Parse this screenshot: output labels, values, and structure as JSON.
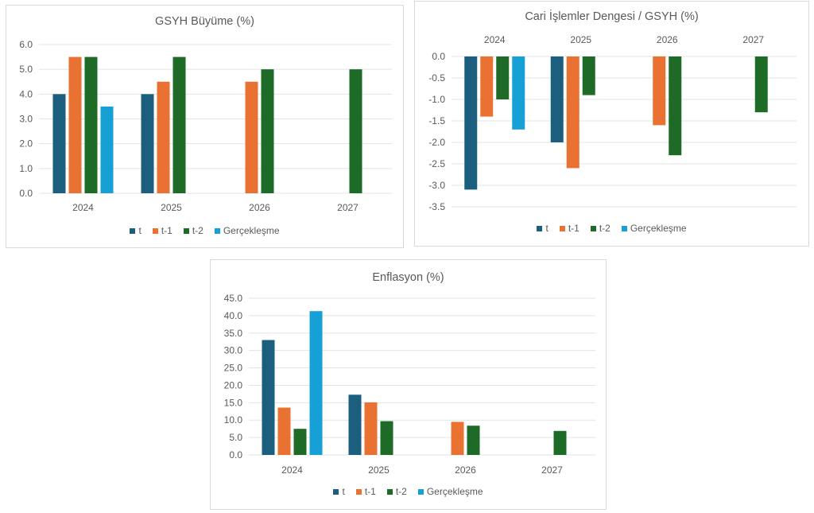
{
  "legend_colors": {
    "t": "#1b5e7e",
    "t-1": "#e97132",
    "t-2": "#1e6b27",
    "Gerçekleşme": "#17a0d5"
  },
  "chart_data": [
    {
      "id": "gsyh",
      "type": "bar",
      "title": "GSYH Büyüme (%)",
      "xlabel": "",
      "ylabel": "",
      "categories": [
        "2024",
        "2025",
        "2026",
        "2027"
      ],
      "ylim": [
        0,
        6
      ],
      "yticks": [
        0,
        1,
        2,
        3,
        4,
        5,
        6
      ],
      "ytick_labels": [
        "0.0",
        "1.0",
        "2.0",
        "3.0",
        "4.0",
        "5.0",
        "6.0"
      ],
      "category_axis_position": "bottom",
      "grid": true,
      "legend_position": "bottom",
      "series": [
        {
          "name": "t",
          "values": [
            4.0,
            4.0,
            null,
            null
          ]
        },
        {
          "name": "t-1",
          "values": [
            5.5,
            4.5,
            4.5,
            null
          ]
        },
        {
          "name": "t-2",
          "values": [
            5.5,
            5.5,
            5.0,
            5.0
          ]
        },
        {
          "name": "Gerçekleşme",
          "values": [
            3.5,
            null,
            null,
            null
          ]
        }
      ]
    },
    {
      "id": "cari",
      "type": "bar",
      "title": "Cari İşlemler Dengesi / GSYH (%)",
      "xlabel": "",
      "ylabel": "",
      "categories": [
        "2024",
        "2025",
        "2026",
        "2027"
      ],
      "ylim": [
        -3.5,
        0
      ],
      "yticks": [
        0,
        -0.5,
        -1,
        -1.5,
        -2,
        -2.5,
        -3,
        -3.5
      ],
      "ytick_labels": [
        "0.0",
        "-0.5",
        "-1.0",
        "-1.5",
        "-2.0",
        "-2.5",
        "-3.0",
        "-3.5"
      ],
      "category_axis_position": "top",
      "grid": true,
      "legend_position": "bottom",
      "series": [
        {
          "name": "t",
          "values": [
            -3.1,
            -2.0,
            null,
            null
          ]
        },
        {
          "name": "t-1",
          "values": [
            -1.4,
            -2.6,
            -1.6,
            null
          ]
        },
        {
          "name": "t-2",
          "values": [
            -1.0,
            -0.9,
            -2.3,
            -1.3
          ]
        },
        {
          "name": "Gerçekleşme",
          "values": [
            -1.7,
            null,
            null,
            null
          ]
        }
      ]
    },
    {
      "id": "enf",
      "type": "bar",
      "title": "Enflasyon (%)",
      "xlabel": "",
      "ylabel": "",
      "categories": [
        "2024",
        "2025",
        "2026",
        "2027"
      ],
      "ylim": [
        0,
        45
      ],
      "yticks": [
        0,
        5,
        10,
        15,
        20,
        25,
        30,
        35,
        40,
        45
      ],
      "ytick_labels": [
        "0.0",
        "5.0",
        "10.0",
        "15.0",
        "20.0",
        "25.0",
        "30.0",
        "35.0",
        "40.0",
        "45.0"
      ],
      "category_axis_position": "bottom",
      "grid": true,
      "legend_position": "bottom",
      "series": [
        {
          "name": "t",
          "values": [
            33.0,
            17.3,
            null,
            null
          ]
        },
        {
          "name": "t-1",
          "values": [
            13.6,
            15.1,
            9.5,
            null
          ]
        },
        {
          "name": "t-2",
          "values": [
            7.5,
            9.7,
            8.4,
            6.9
          ]
        },
        {
          "name": "Gerçekleşme",
          "values": [
            41.3,
            null,
            null,
            null
          ]
        }
      ]
    }
  ]
}
